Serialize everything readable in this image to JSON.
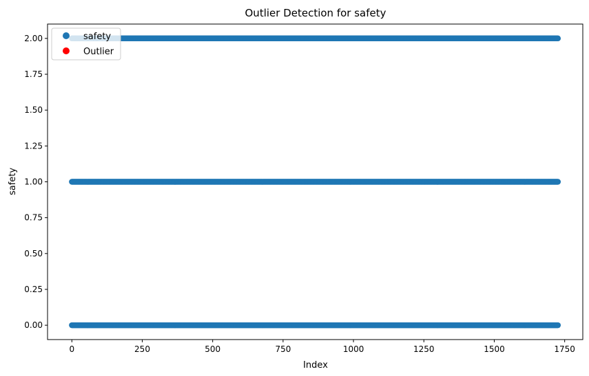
{
  "chart_data": {
    "type": "scatter",
    "title": "Outlier Detection for safety",
    "xlabel": "Index",
    "ylabel": "safety",
    "xlim": [
      -86.4,
      1814.4
    ],
    "ylim": [
      -0.1,
      2.1
    ],
    "x_ticks": [
      0,
      250,
      500,
      750,
      1000,
      1250,
      1500,
      1750
    ],
    "x_tick_labels": [
      "0",
      "250",
      "500",
      "750",
      "1000",
      "1250",
      "1500",
      "1750"
    ],
    "y_ticks": [
      0,
      0.25,
      0.5,
      0.75,
      1.0,
      1.25,
      1.5,
      1.75,
      2.0
    ],
    "y_tick_labels": [
      "0.00",
      "0.25",
      "0.50",
      "0.75",
      "1.00",
      "1.25",
      "1.50",
      "1.75",
      "2.00"
    ],
    "grid": false,
    "legend_position": "upper-left",
    "series": [
      {
        "name": "safety",
        "color": "#1f77b4",
        "marker": "circle",
        "x_range": [
          0,
          1727
        ],
        "y_levels": [
          0,
          1,
          2
        ],
        "description": "one point per index at each y level"
      },
      {
        "name": "Outlier",
        "color": "#ff0000",
        "marker": "circle",
        "points": []
      }
    ]
  }
}
